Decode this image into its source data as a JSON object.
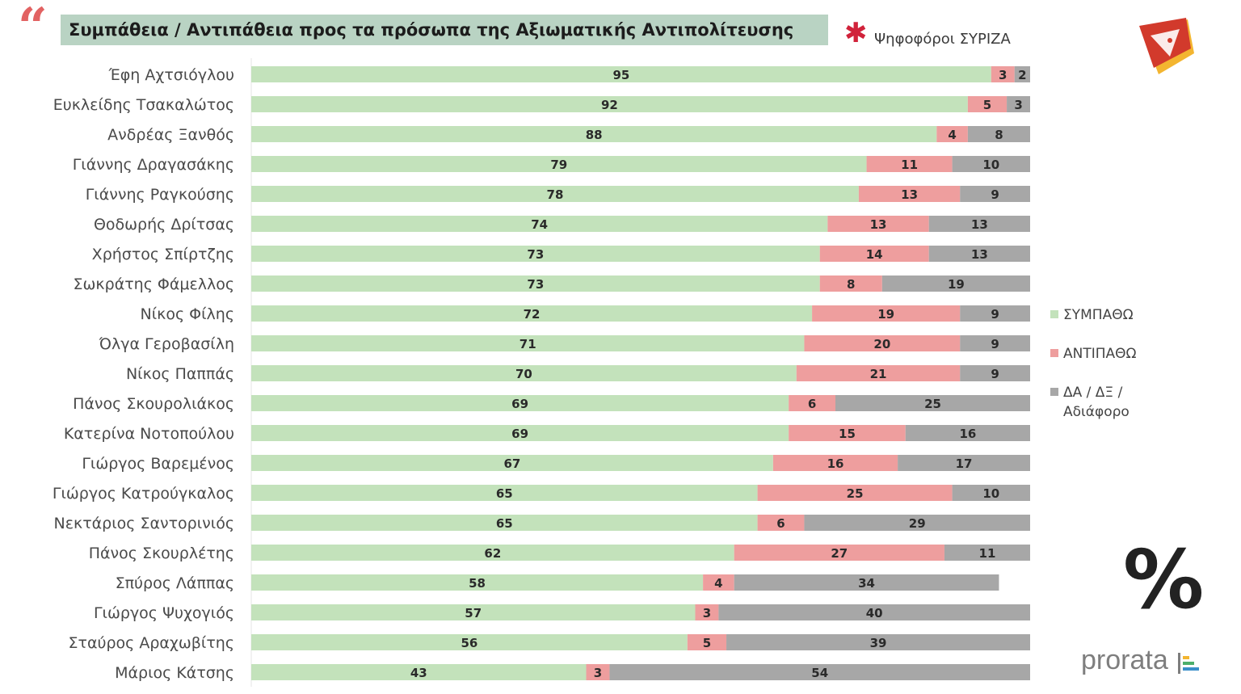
{
  "header": {
    "title": "Συμπάθεια / Αντιπάθεια προς τα πρόσωπα της Αξιωματικής Αντιπολίτευσης",
    "subtitle": "Ψηφοφόροι ΣΥΡΙΖΑ",
    "quote_icon": "quote-icon",
    "asterisk_icon": "asterisk-icon"
  },
  "legend": {
    "items": [
      {
        "label": "ΣΥΜΠΑΘΩ",
        "color": "#c3e2bb"
      },
      {
        "label": "ΑΝΤΙΠΑΘΩ",
        "color": "#ee9e9e"
      },
      {
        "label": "ΔΑ / ΔΞ /",
        "label2": "Αδιάφορο",
        "color": "#a7a7a7"
      }
    ]
  },
  "percent_symbol": "%",
  "brand": {
    "name": "prorata"
  },
  "chart_data": {
    "type": "bar",
    "orientation": "horizontal",
    "stacked": true,
    "title": "Συμπάθεια / Αντιπάθεια προς τα πρόσωπα της Αξιωματικής Αντιπολίτευσης",
    "subtitle": "Ψηφοφόροι ΣΥΡΙΖΑ",
    "categories": [
      "Έφη Αχτσιόγλου",
      "Ευκλείδης Τσακαλώτος",
      "Ανδρέας Ξανθός",
      "Γιάννης Δραγασάκης",
      "Γιάννης Ραγκούσης",
      "Θοδωρής Δρίτσας",
      "Χρήστος Σπίρτζης",
      "Σωκράτης Φάμελλος",
      "Νίκος Φίλης",
      "Όλγα Γεροβασίλη",
      "Νίκος Παππάς",
      "Πάνος Σκουρολιάκος",
      "Κατερίνα Νοτοπούλου",
      "Γιώργος Βαρεμένος",
      "Γιώργος Κατρούγκαλος",
      "Νεκτάριος Σαντορινιός",
      "Πάνος Σκουρλέτης",
      "Σπύρος Λάππας",
      "Γιώργος Ψυχογιός",
      "Σταύρος Αραχωβίτης",
      "Μάριος Κάτσης"
    ],
    "series": [
      {
        "name": "ΣΥΜΠΑΘΩ",
        "color": "#c3e2bb",
        "values": [
          95,
          92,
          88,
          79,
          78,
          74,
          73,
          73,
          72,
          71,
          70,
          69,
          69,
          67,
          65,
          65,
          62,
          58,
          57,
          56,
          43
        ]
      },
      {
        "name": "ΑΝΤΙΠΑΘΩ",
        "color": "#ee9e9e",
        "values": [
          3,
          5,
          4,
          11,
          13,
          13,
          14,
          8,
          19,
          20,
          21,
          6,
          15,
          16,
          25,
          6,
          27,
          4,
          3,
          5,
          3
        ]
      },
      {
        "name": "ΔΑ / ΔΞ / Αδιάφορο",
        "color": "#a7a7a7",
        "values": [
          2,
          3,
          8,
          10,
          9,
          13,
          13,
          19,
          9,
          9,
          9,
          25,
          16,
          17,
          10,
          29,
          11,
          34,
          40,
          39,
          54
        ]
      }
    ],
    "xlim": [
      0,
      100
    ],
    "grid": false,
    "legend": "right",
    "unit": "%"
  }
}
